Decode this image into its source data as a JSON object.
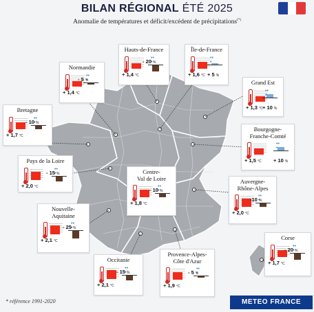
{
  "header": {
    "title_bold": "BILAN RÉGIONAL",
    "title_light": " ÉTÉ 2025",
    "subtitle": "Anomalie de températures et déficit/excédent de précipitations",
    "subtitle_mark": "(*)"
  },
  "footer": {
    "note": "* référence 1991-2020",
    "brand": "METEO FRANCE"
  },
  "colors": {
    "temp": "#ee2c1c",
    "deficit": "#5b3a27",
    "excess": "#7aaad8",
    "map": "#a7aaaf",
    "brand": "#0d3a8c"
  },
  "regions": [
    {
      "name": "Hauts-de-France",
      "temp": "+ 1,4",
      "precip": "- 20",
      "unit_t": "°C",
      "unit_p": "%",
      "precip_value": -20
    },
    {
      "name": "Île-de-France",
      "temp": "+ 1,6",
      "precip": "+ 5",
      "unit_t": "°C",
      "unit_p": "%",
      "precip_value": 5
    },
    {
      "name": "Normandie",
      "temp": "+ 1,4",
      "precip": "- 5",
      "unit_t": "°C",
      "unit_p": "%",
      "precip_value": -5
    },
    {
      "name": "Grand Est",
      "temp": "+ 1,3",
      "precip": "+ 10",
      "unit_t": "°C",
      "unit_p": "%",
      "precip_value": 10
    },
    {
      "name": "Bretagne",
      "temp": "+ 1,7",
      "precip": "- 10",
      "unit_t": "°C",
      "unit_p": "%",
      "precip_value": -10
    },
    {
      "name": "Bourgogne-\nFranche-Comté",
      "temp": "+ 1,5",
      "precip": "+ 10",
      "unit_t": "°C",
      "unit_p": "%",
      "precip_value": 10
    },
    {
      "name": "Pays de la Loire",
      "temp": "+ 2,0",
      "precip": "- 15",
      "unit_t": "°C",
      "unit_p": "%",
      "precip_value": -15
    },
    {
      "name": "Centre-\nVal de Loire",
      "temp": "+ 1,8",
      "precip": "- 10",
      "unit_t": "°C",
      "unit_p": "%",
      "precip_value": -10
    },
    {
      "name": "Auvergne-\nRhône-Alpes",
      "temp": "+ 2,0",
      "precip": "-10",
      "unit_t": "°C",
      "unit_p": "%",
      "precip_value": -10
    },
    {
      "name": "Nouvelle-\nAquitaine",
      "temp": "+ 2,1",
      "precip": "- 25",
      "unit_t": "°C",
      "unit_p": "%",
      "precip_value": -25
    },
    {
      "name": "Corse",
      "temp": "+ 1,7",
      "precip": "- 20",
      "unit_t": "°C",
      "unit_p": "%",
      "precip_value": -20
    },
    {
      "name": "Occitanie",
      "temp": "+ 2,1",
      "precip": "- 15",
      "unit_t": "°C",
      "unit_p": "%",
      "precip_value": -15
    },
    {
      "name": "Provence-Alpes-\nCôte d'Azur",
      "temp": "+ 1,9",
      "precip": "- 5",
      "unit_t": "°C",
      "unit_p": "%",
      "precip_value": -5
    }
  ]
}
